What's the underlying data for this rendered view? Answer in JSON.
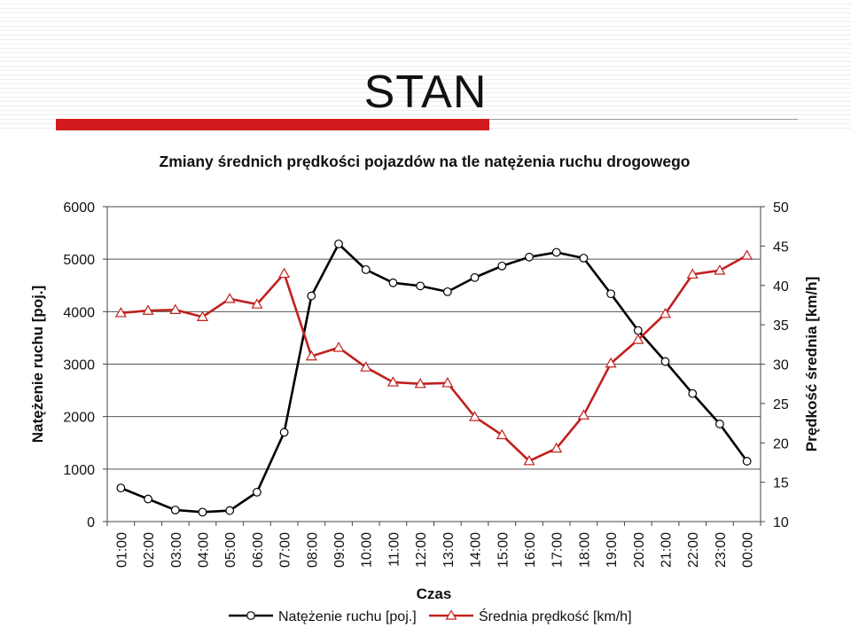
{
  "slide": {
    "title": "STAN"
  },
  "chart_data": {
    "type": "line",
    "title": "Zmiany średnich prędkości pojazdów na tle natężenia ruchu drogowego",
    "xlabel": "Czas",
    "ylabel_left": "Natężenie ruchu [poj.]",
    "ylabel_right": "Prędkość średnia [km/h]",
    "ylim_left": [
      0,
      6000
    ],
    "ylim_right": [
      10,
      50
    ],
    "yticks_left": [
      "0",
      "1000",
      "2000",
      "3000",
      "4000",
      "5000",
      "6000"
    ],
    "yticks_right": [
      "10",
      "15",
      "20",
      "25",
      "30",
      "35",
      "40",
      "45",
      "50"
    ],
    "categories": [
      "01:00",
      "02:00",
      "03:00",
      "04:00",
      "05:00",
      "06:00",
      "07:00",
      "08:00",
      "09:00",
      "10:00",
      "11:00",
      "12:00",
      "13:00",
      "14:00",
      "15:00",
      "16:00",
      "17:00",
      "18:00",
      "19:00",
      "20:00",
      "21:00",
      "22:00",
      "23:00",
      "00:00"
    ],
    "grid": true,
    "legend_position": "bottom",
    "series": [
      {
        "name": "Natężenie ruchu [poj.]",
        "axis": "left",
        "color": "#000000",
        "marker": "circle",
        "values": [
          640,
          430,
          220,
          180,
          210,
          560,
          1700,
          4300,
          5290,
          4800,
          4550,
          4490,
          4380,
          4650,
          4870,
          5040,
          5130,
          5020,
          4340,
          3640,
          3050,
          2440,
          1860,
          1150
        ]
      },
      {
        "name": "Średnia prędkość [km/h]",
        "axis": "right",
        "color": "#c0201e",
        "marker": "triangle",
        "values": [
          36.5,
          36.8,
          36.9,
          36.0,
          38.3,
          37.6,
          41.5,
          31.0,
          32.1,
          29.6,
          27.7,
          27.5,
          27.6,
          23.3,
          21.0,
          17.7,
          19.3,
          23.5,
          30.1,
          33.1,
          36.4,
          41.4,
          41.9,
          43.8
        ]
      }
    ]
  }
}
